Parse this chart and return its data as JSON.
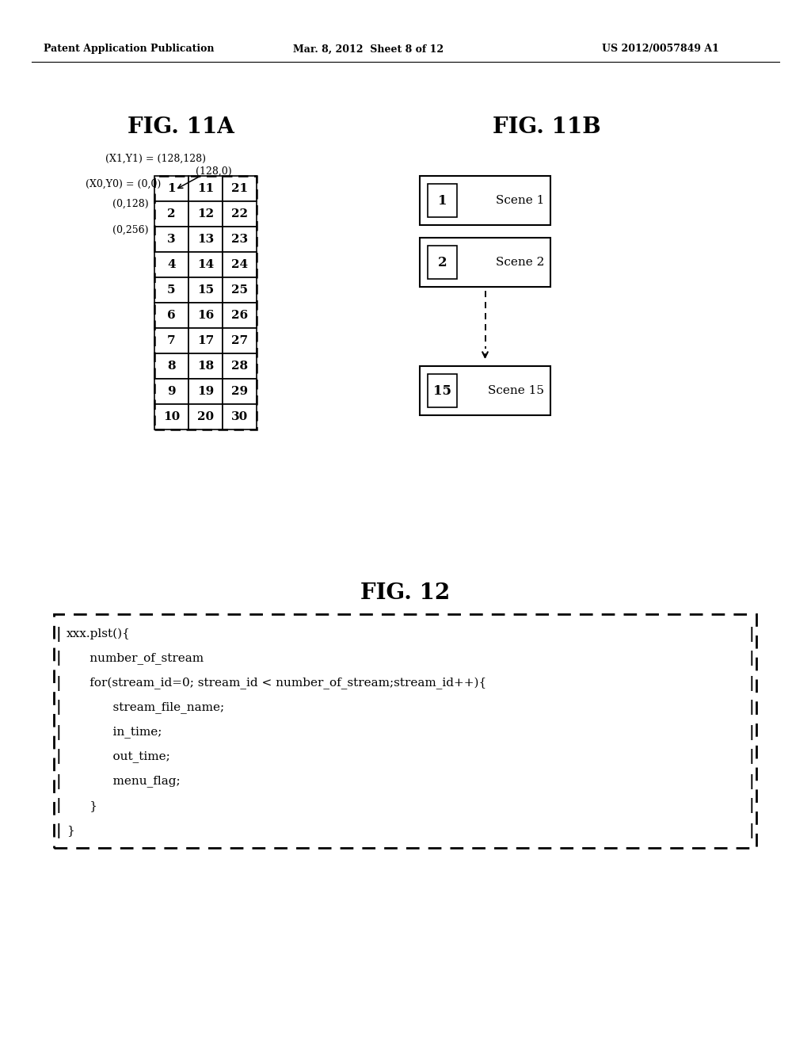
{
  "header_left": "Patent Application Publication",
  "header_mid": "Mar. 8, 2012  Sheet 8 of 12",
  "header_right": "US 2012/0057849 A1",
  "fig11a_title": "FIG. 11A",
  "fig11b_title": "FIG. 11B",
  "fig12_title": "FIG. 12",
  "table_data": [
    [
      1,
      11,
      21
    ],
    [
      2,
      12,
      22
    ],
    [
      3,
      13,
      23
    ],
    [
      4,
      14,
      24
    ],
    [
      5,
      15,
      25
    ],
    [
      6,
      16,
      26
    ],
    [
      7,
      17,
      27
    ],
    [
      8,
      18,
      28
    ],
    [
      9,
      19,
      29
    ],
    [
      10,
      20,
      30
    ]
  ],
  "label_x1y1": "(X1,Y1) = (128,128)",
  "label_128_0": "(128,0)",
  "label_x0y0": "(X0,Y0) = (0,0)",
  "label_0_128": "(0,128)",
  "label_0_256": "(0,256)",
  "scenes": [
    {
      "num": "1",
      "label": "Scene 1"
    },
    {
      "num": "2",
      "label": "Scene 2"
    },
    {
      "num": "15",
      "label": "Scene 15"
    }
  ],
  "fig12_code_lines": [
    "xxx.plst(){",
    "      number_of_stream",
    "      for(stream_id=0; stream_id < number_of_stream;stream_id++){",
    "            stream_file_name;",
    "            in_time;",
    "            out_time;",
    "            menu_flag;",
    "      }",
    "}"
  ],
  "bg_color": "#ffffff",
  "text_color": "#000000"
}
